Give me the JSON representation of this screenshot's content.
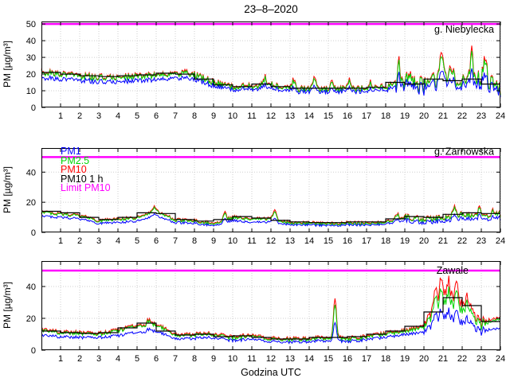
{
  "chart_data": {
    "type": "line",
    "title": "23–8–2020",
    "xlabel": "Godzina UTC",
    "ylabel": "PM [µg/m³]",
    "x_range": [
      0,
      24
    ],
    "xticks": [
      1,
      2,
      3,
      4,
      5,
      6,
      7,
      8,
      9,
      10,
      11,
      12,
      13,
      14,
      15,
      16,
      17,
      18,
      19,
      20,
      21,
      22,
      23,
      24
    ],
    "legend": [
      {
        "label": "PM1",
        "color": "#0000ff"
      },
      {
        "label": "PM2.5",
        "color": "#00d500"
      },
      {
        "label": "PM10",
        "color": "#ff0000"
      },
      {
        "label": "PM10 1 h",
        "color": "#000000"
      },
      {
        "label": "Limit PM10",
        "color": "#ff00ff"
      }
    ],
    "limit_pm10": 50,
    "panels": [
      {
        "station": "g. Niebylecka",
        "ylim": [
          0,
          51.5
        ],
        "yticks": [
          0,
          10,
          20,
          30,
          40,
          50
        ],
        "hours": [
          0,
          1,
          2,
          3,
          4,
          5,
          6,
          7,
          8,
          9,
          10,
          11,
          12,
          13,
          14,
          15,
          16,
          17,
          18,
          19,
          20,
          21,
          22,
          23,
          24
        ],
        "series": {
          "pm2_5": [
            21,
            20,
            19,
            18,
            18,
            18.5,
            19,
            20,
            19.5,
            15,
            12,
            12.5,
            14,
            11,
            11,
            11,
            11,
            11,
            12,
            16,
            13,
            18,
            15,
            17,
            12
          ],
          "pm10": [
            21.5,
            20.5,
            19.5,
            18.5,
            18.5,
            19,
            19.5,
            20.5,
            20,
            15.5,
            12.5,
            13,
            14.5,
            11.5,
            11.5,
            11.5,
            11.5,
            11.5,
            12.5,
            16.5,
            13.5,
            18.5,
            15.5,
            17.5,
            12.5
          ],
          "pm1": [
            18,
            17,
            16.5,
            15.5,
            15.5,
            16,
            16.5,
            17.5,
            17,
            13,
            10.5,
            11,
            12,
            9.5,
            9.5,
            9.5,
            9.5,
            9.5,
            10.5,
            13.5,
            11,
            15,
            12.5,
            14,
            10
          ],
          "pm10_1h": [
            21,
            20,
            19,
            18.5,
            19,
            19.5,
            20.5,
            20,
            17,
            13.5,
            12.5,
            14,
            12.5,
            11.5,
            11.5,
            11.5,
            11.5,
            12,
            15,
            14,
            17,
            16,
            17,
            14
          ]
        },
        "noise_base": 1.8,
        "noise_segments": [
          {
            "from": 0,
            "to": 3,
            "amp": 2.2
          },
          {
            "from": 18.5,
            "to": 24,
            "amp": 5
          }
        ],
        "spikes": [
          {
            "t": 7.5,
            "a": 3
          },
          {
            "t": 11.7,
            "a": 4
          },
          {
            "t": 13.2,
            "a": 5
          },
          {
            "t": 14.3,
            "a": 6
          },
          {
            "t": 15.2,
            "a": 5
          },
          {
            "t": 16.1,
            "a": 5
          },
          {
            "t": 17.2,
            "a": 4
          },
          {
            "t": 18.7,
            "a": 9
          },
          {
            "t": 19.3,
            "a": 6
          },
          {
            "t": 20.9,
            "a": 14
          },
          {
            "t": 21.4,
            "a": 10
          },
          {
            "t": 22.5,
            "a": 17
          },
          {
            "t": 23.2,
            "a": 12
          }
        ]
      },
      {
        "station": "g. Zarnowska",
        "ylim": [
          0,
          56
        ],
        "yticks": [
          0,
          20,
          40
        ],
        "hours": [
          0,
          1,
          2,
          3,
          4,
          5,
          6,
          7,
          8,
          9,
          10,
          11,
          12,
          13,
          14,
          15,
          16,
          17,
          18,
          19,
          20,
          21,
          22,
          23,
          24
        ],
        "series": {
          "pm2_5": [
            13,
            12,
            11,
            7.5,
            8.5,
            9.5,
            14,
            8,
            7.5,
            5.5,
            10,
            8.5,
            9,
            6,
            6,
            5.5,
            6,
            6,
            6.5,
            10,
            8.5,
            9.5,
            12,
            10.5,
            12
          ],
          "pm10": [
            13.5,
            12.5,
            11.5,
            8,
            9,
            10,
            14.5,
            8.5,
            8,
            6,
            10.5,
            9,
            9.5,
            6.5,
            6.5,
            6,
            6.5,
            6.5,
            7,
            10.5,
            9,
            10,
            12.5,
            11,
            12.5
          ],
          "pm1": [
            10.5,
            10,
            9,
            6,
            6.5,
            7.5,
            11,
            6.5,
            6,
            4.5,
            8,
            6.5,
            7,
            5,
            5,
            4.5,
            5,
            5,
            5.5,
            8,
            6.5,
            7.5,
            9.5,
            8.5,
            9.5
          ],
          "pm10_1h": [
            14,
            13,
            10,
            8.5,
            10,
            13,
            12.5,
            8.5,
            7.5,
            8.5,
            10.5,
            9.5,
            8,
            7,
            6.5,
            6.5,
            7,
            7,
            9,
            10.5,
            10,
            12,
            13,
            12.5
          ]
        },
        "noise_base": 1.0,
        "noise_segments": [
          {
            "from": 19,
            "to": 24,
            "amp": 1.8
          }
        ],
        "spikes": [
          {
            "t": 5.9,
            "a": 3
          },
          {
            "t": 9.6,
            "a": 4
          },
          {
            "t": 12.2,
            "a": 6
          },
          {
            "t": 18.6,
            "a": 3
          },
          {
            "t": 21.6,
            "a": 5
          },
          {
            "t": 22.9,
            "a": 4
          },
          {
            "t": 23.6,
            "a": 3
          }
        ]
      },
      {
        "station": "Zawale",
        "ylim": [
          0,
          56
        ],
        "yticks": [
          0,
          20,
          40
        ],
        "hours": [
          0,
          1,
          2,
          3,
          4,
          5,
          6,
          7,
          8,
          9,
          10,
          11,
          12,
          13,
          14,
          15,
          16,
          17,
          18,
          19,
          20,
          21,
          22,
          23,
          24
        ],
        "series": {
          "pm2_5": [
            12,
            11,
            10.5,
            10,
            12,
            15.5,
            16,
            9,
            9.5,
            10,
            7.5,
            9,
            7,
            6.5,
            7,
            7.5,
            7,
            8,
            10,
            12,
            14,
            30,
            26,
            16,
            20
          ],
          "pm10": [
            12.7,
            11.7,
            11.2,
            10.7,
            12.7,
            16.2,
            16.7,
            9.7,
            10.2,
            10.7,
            8.2,
            9.7,
            7.7,
            7.2,
            7.7,
            8.2,
            7.7,
            8.7,
            10.7,
            12.7,
            15,
            36,
            30,
            17.5,
            21
          ],
          "pm1": [
            9,
            8.5,
            8,
            8,
            9,
            11.5,
            12,
            7,
            7.5,
            8,
            6,
            7,
            5.5,
            5,
            5.5,
            6,
            5.5,
            6.5,
            8,
            10,
            11,
            21,
            18,
            12,
            14
          ],
          "pm10_1h": [
            12,
            11,
            10.5,
            11,
            14,
            17,
            12,
            9.5,
            10,
            8.5,
            9,
            8,
            7,
            7,
            8,
            8,
            8.5,
            10,
            12,
            15,
            24,
            33,
            28,
            18
          ]
        },
        "noise_base": 1.2,
        "noise_segments": [
          {
            "from": 20,
            "to": 23.2,
            "amp": 3.5
          }
        ],
        "spikes": [
          {
            "t": 5.6,
            "a": 2.5
          },
          {
            "t": 15.35,
            "a": 22
          },
          {
            "t": 20.6,
            "a": 8
          },
          {
            "t": 20.9,
            "a": 12
          },
          {
            "t": 21.3,
            "a": 9
          },
          {
            "t": 21.7,
            "a": 8
          },
          {
            "t": 22.3,
            "a": 7
          }
        ]
      }
    ]
  }
}
